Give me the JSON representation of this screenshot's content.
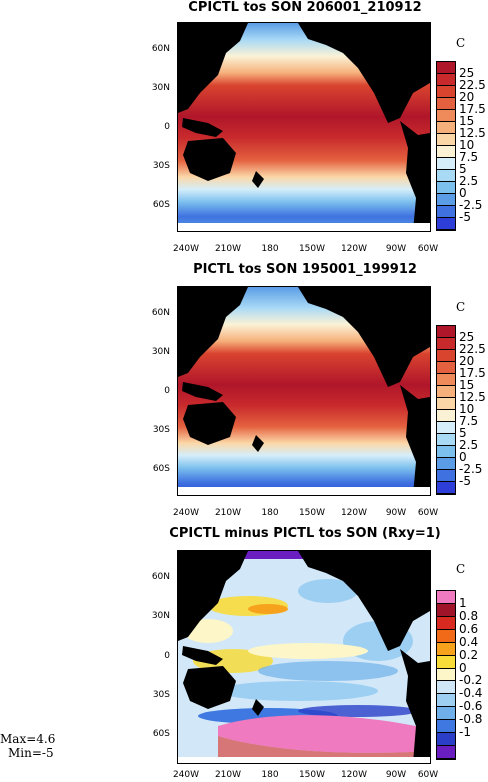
{
  "panels": [
    {
      "title": "CPICTL tos SON 206001_210912",
      "unit": "C",
      "colorbar": {
        "labels": [
          "25",
          "22.5",
          "20",
          "17.5",
          "15",
          "12.5",
          "10",
          "7.5",
          "5",
          "2.5",
          "0",
          "-2.5",
          "-5"
        ],
        "colors": [
          "#b0162a",
          "#c82a2c",
          "#d9442f",
          "#e4613f",
          "#ef8a5a",
          "#f6b07b",
          "#fbd7a7",
          "#fbf2d6",
          "#d5eefa",
          "#a8d9f5",
          "#7cc0ee",
          "#5a9de6",
          "#3f72e0",
          "#2d3fd8"
        ]
      }
    },
    {
      "title": "PICTL tos SON 195001_199912",
      "unit": "C",
      "colorbar": {
        "labels": [
          "25",
          "22.5",
          "20",
          "17.5",
          "15",
          "12.5",
          "10",
          "7.5",
          "5",
          "2.5",
          "0",
          "-2.5",
          "-5"
        ],
        "colors": [
          "#b0162a",
          "#c82a2c",
          "#d9442f",
          "#e4613f",
          "#ef8a5a",
          "#f6b07b",
          "#fbd7a7",
          "#fbf2d6",
          "#d5eefa",
          "#a8d9f5",
          "#7cc0ee",
          "#5a9de6",
          "#3f72e0",
          "#2d3fd8"
        ]
      }
    },
    {
      "title": "CPICTL minus PICTL tos SON (Rxy=1)",
      "unit": "C",
      "colorbar": {
        "labels": [
          "1",
          "0.8",
          "0.6",
          "0.4",
          "0.2",
          "0",
          "-0.2",
          "-0.4",
          "-0.6",
          "-0.8",
          "-1"
        ],
        "colors": [
          "#f07ac0",
          "#a0142a",
          "#d82a20",
          "#f06a18",
          "#f6a21c",
          "#f8dc3a",
          "#fcf6c8",
          "#cfe6f6",
          "#9ccff2",
          "#6fb0ea",
          "#3f78e0",
          "#2a3ec8",
          "#6a1ec0"
        ]
      }
    }
  ],
  "lat_labels": [
    "60N",
    "30N",
    "0",
    "30S",
    "60S"
  ],
  "lon_labels": [
    "240W",
    "210W",
    "180",
    "150W",
    "120W",
    "90W",
    "60W"
  ],
  "stats": {
    "max": "Max=4.6",
    "min": "Min=-5"
  }
}
